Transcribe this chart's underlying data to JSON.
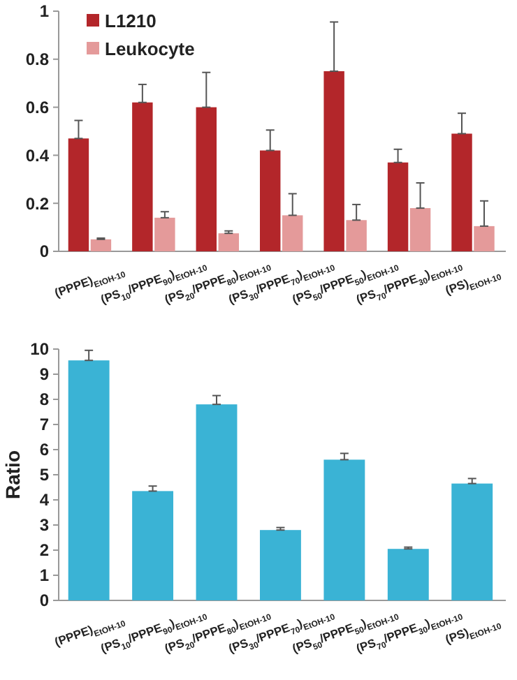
{
  "chart_data": [
    {
      "type": "bar",
      "categories": [
        "(PPPE)$_{EtOH-10}$",
        "(PS$_{10}$/PPPE$_{90}$)$_{EtOH-10}$",
        "(PS$_{20}$/PPPE$_{80}$)$_{EtOH-10}$",
        "(PS$_{30}$/PPPE$_{70}$)$_{EtOH-10}$",
        "(PS$_{50}$/PPPE$_{50}$)$_{EtOH-10}$",
        "(PS$_{70}$/PPPE$_{30}$)$_{EtOH-10}$",
        "(PS)$_{EtOH-10}$"
      ],
      "series": [
        {
          "name": "L1210",
          "color": "#b3262a",
          "values": [
            0.47,
            0.62,
            0.6,
            0.42,
            0.75,
            0.37,
            0.49
          ],
          "errors": [
            [
              0.47,
              0.545
            ],
            [
              0.62,
              0.695
            ],
            [
              0.6,
              0.745
            ],
            [
              0.42,
              0.505
            ],
            [
              0.75,
              0.955
            ],
            [
              0.37,
              0.425
            ],
            [
              0.49,
              0.575
            ]
          ]
        },
        {
          "name": "Leukocyte",
          "color": "#e49a9a",
          "values": [
            0.05,
            0.14,
            0.075,
            0.15,
            0.13,
            0.18,
            0.105
          ],
          "errors": [
            [
              0.05,
              0.055
            ],
            [
              0.14,
              0.165
            ],
            [
              0.075,
              0.085
            ],
            [
              0.15,
              0.24
            ],
            [
              0.13,
              0.195
            ],
            [
              0.18,
              0.285
            ],
            [
              0.105,
              0.21
            ]
          ]
        }
      ],
      "ylim": [
        0,
        1
      ],
      "yticks": [
        0,
        0.2,
        0.4,
        0.6,
        0.8,
        1
      ],
      "legend": "top left"
    },
    {
      "type": "bar",
      "ylabel": "Ratio",
      "categories": [
        "(PPPE)$_{EtOH-10}$",
        "(PS$_{10}$/PPPE$_{90}$)$_{EtOH-10}$",
        "(PS$_{20}$/PPPE$_{80}$)$_{EtOH-10}$",
        "(PS$_{30}$/PPPE$_{70}$)$_{EtOH-10}$",
        "(PS$_{50}$/PPPE$_{50}$)$_{EtOH-10}$",
        "(PS$_{70}$/PPPE$_{30}$)$_{EtOH-10}$",
        "(PS)$_{EtOH-10}$"
      ],
      "series": [
        {
          "color": "#3ab3d5",
          "values": [
            9.55,
            4.35,
            7.8,
            2.8,
            5.6,
            2.05,
            4.65
          ],
          "errors": [
            [
              9.55,
              9.95
            ],
            [
              4.35,
              4.55
            ],
            [
              7.8,
              8.15
            ],
            [
              2.8,
              2.9
            ],
            [
              5.6,
              5.85
            ],
            [
              2.05,
              2.12
            ],
            [
              4.65,
              4.85
            ]
          ]
        }
      ],
      "ylim": [
        0,
        10
      ],
      "yticks": [
        0,
        1,
        2,
        3,
        4,
        5,
        6,
        7,
        8,
        9,
        10
      ]
    }
  ]
}
